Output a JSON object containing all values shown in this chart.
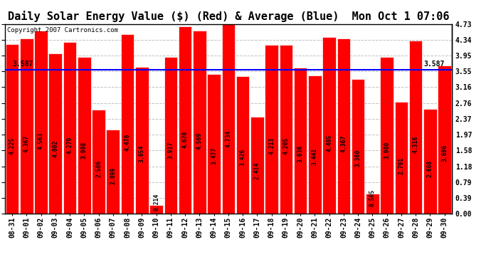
{
  "title": "Daily Solar Energy Value ($) (Red) & Average (Blue)  Mon Oct 1 07:06",
  "copyright": "Copyright 2007 Cartronics.com",
  "bar_color": "#ff0000",
  "bar_edge_color": "#ffffff",
  "background_color": "#ffffff",
  "plot_bg_color": "#ffffff",
  "average_line_color": "#0000ff",
  "average_value": 3.587,
  "categories": [
    "08-31",
    "09-01",
    "09-02",
    "09-03",
    "09-04",
    "09-05",
    "09-06",
    "09-07",
    "09-08",
    "09-09",
    "09-10",
    "09-11",
    "09-12",
    "09-13",
    "09-14",
    "09-15",
    "09-16",
    "09-17",
    "09-18",
    "09-19",
    "09-20",
    "09-21",
    "09-22",
    "09-23",
    "09-24",
    "09-25",
    "09-26",
    "09-27",
    "09-28",
    "09-29",
    "09-30"
  ],
  "values": [
    4.225,
    4.367,
    4.563,
    4.002,
    4.279,
    3.908,
    2.586,
    2.099,
    4.476,
    3.654,
    0.214,
    3.917,
    4.67,
    4.569,
    3.477,
    4.734,
    3.426,
    2.414,
    4.213,
    4.205,
    3.636,
    3.441,
    4.405,
    4.367,
    3.36,
    0.505,
    3.9,
    2.791,
    4.316,
    2.608,
    3.696
  ],
  "ylim": [
    0.0,
    4.73
  ],
  "yticks": [
    0.0,
    0.39,
    0.79,
    1.18,
    1.58,
    1.97,
    2.37,
    2.76,
    3.16,
    3.55,
    3.95,
    4.34,
    4.73
  ],
  "grid_color": "#c0c0c0",
  "title_fontsize": 11,
  "tick_fontsize": 7,
  "bar_label_fontsize": 5.8,
  "avg_label_fontsize": 7
}
